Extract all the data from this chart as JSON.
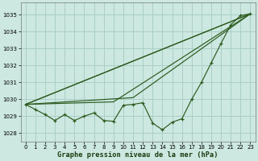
{
  "title": "Graphe pression niveau de la mer (hPa)",
  "bg_color": "#cce8e0",
  "grid_color": "#aacfc8",
  "line_color": "#2d5a1e",
  "xlim": [
    -0.5,
    23.5
  ],
  "ylim": [
    1027.5,
    1035.7
  ],
  "yticks": [
    1028,
    1029,
    1030,
    1031,
    1032,
    1033,
    1034,
    1035
  ],
  "xticks": [
    0,
    1,
    2,
    3,
    4,
    5,
    6,
    7,
    8,
    9,
    10,
    11,
    12,
    13,
    14,
    15,
    16,
    17,
    18,
    19,
    20,
    21,
    22,
    23
  ],
  "x_obs": [
    0,
    1,
    2,
    3,
    4,
    5,
    6,
    7,
    8,
    9,
    10,
    11,
    12,
    13,
    14,
    15,
    16,
    17,
    18,
    19,
    20,
    21,
    22,
    23
  ],
  "y_obs": [
    1029.7,
    1029.4,
    1029.1,
    1028.75,
    1029.1,
    1028.75,
    1029.0,
    1029.2,
    1028.75,
    1028.7,
    1029.65,
    1029.7,
    1029.8,
    1028.6,
    1028.2,
    1028.65,
    1028.85,
    1030.0,
    1031.0,
    1032.15,
    1033.3,
    1034.4,
    1034.95,
    1035.05
  ],
  "line1_x": [
    0,
    23
  ],
  "line1_y": [
    1029.7,
    1035.05
  ],
  "line2_x": [
    0,
    23
  ],
  "line2_y": [
    1029.7,
    1035.05
  ],
  "line3_x": [
    0,
    9,
    23
  ],
  "line3_y": [
    1029.7,
    1029.85,
    1035.05
  ],
  "line4_x": [
    0,
    11,
    23
  ],
  "line4_y": [
    1029.7,
    1030.1,
    1035.05
  ]
}
